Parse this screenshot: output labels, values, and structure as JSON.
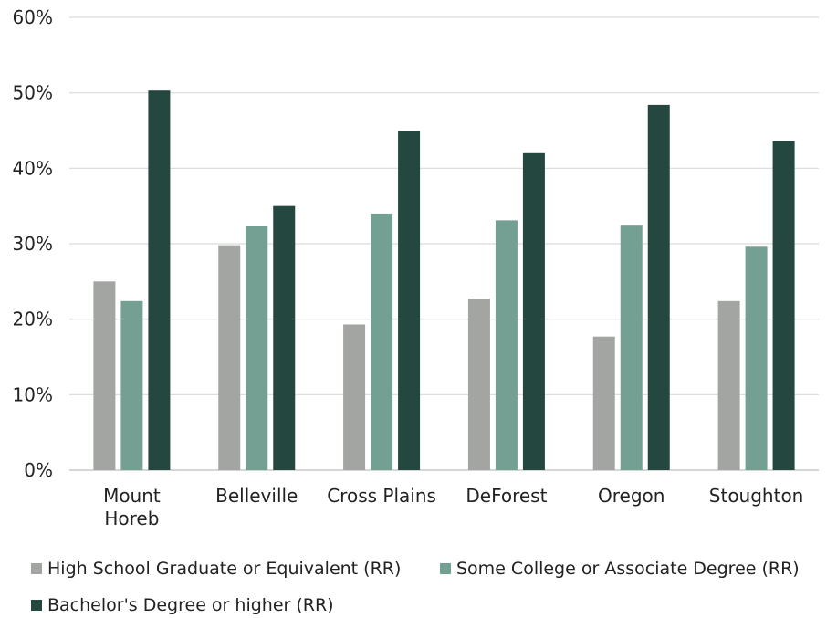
{
  "chart_data": {
    "type": "bar",
    "categories": [
      [
        "Mount",
        "Horeb"
      ],
      [
        "Belleville"
      ],
      [
        "Cross Plains"
      ],
      [
        "DeForest"
      ],
      [
        "Oregon"
      ],
      [
        "Stoughton"
      ]
    ],
    "series": [
      {
        "name": "High School Graduate or Equivalent (RR)",
        "color": "#a2a5a2",
        "values": [
          25,
          29.8,
          19.3,
          22.7,
          17.7,
          22.4
        ]
      },
      {
        "name": "Some College or Associate Degree (RR)",
        "color": "#74a094",
        "values": [
          22.4,
          32.3,
          34.0,
          33.1,
          32.4,
          29.6
        ]
      },
      {
        "name": "Bachelor's Degree or higher (RR)",
        "color": "#24473f",
        "values": [
          50.3,
          35.0,
          44.9,
          42.0,
          48.4,
          43.6
        ]
      }
    ],
    "y_ticks": [
      "0%",
      "10%",
      "20%",
      "30%",
      "40%",
      "50%",
      "60%"
    ],
    "ylim": [
      0,
      60
    ],
    "grid": true,
    "legend_position": "bottom",
    "title": "",
    "xlabel": "",
    "ylabel": ""
  }
}
